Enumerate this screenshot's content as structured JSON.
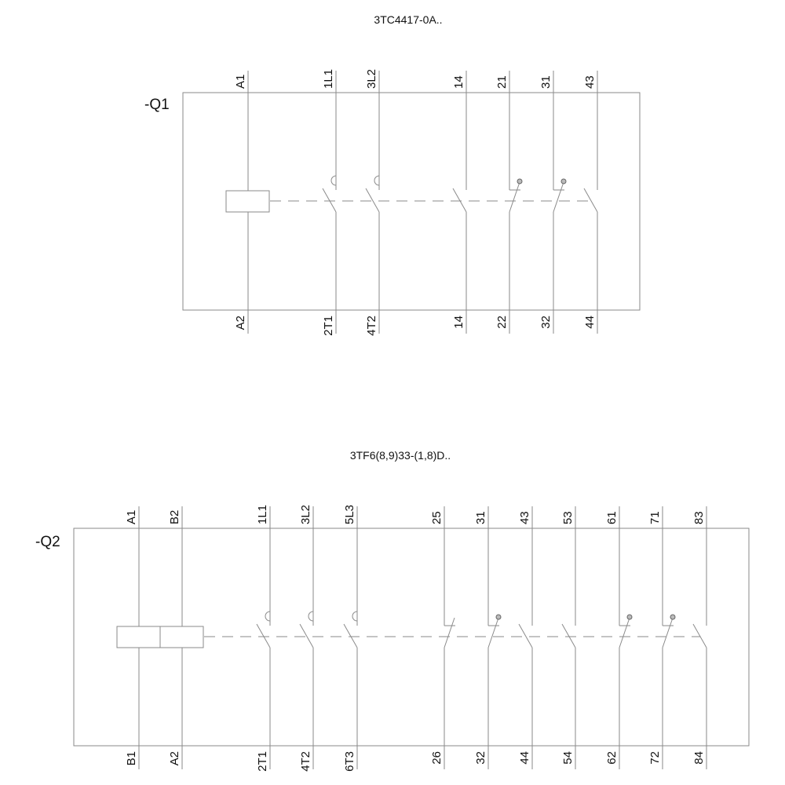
{
  "diagrams": [
    {
      "title": "3TC4417-0A..",
      "tag": "-Q1",
      "coils": [
        {
          "top": "A1",
          "bottom": "A2"
        }
      ],
      "contacts": [
        {
          "top": "1L1",
          "bottom": "2T1",
          "kind": "main-no"
        },
        {
          "top": "3L2",
          "bottom": "4T2",
          "kind": "main-no"
        },
        {
          "top": "14",
          "bottom": "14",
          "kind": "no"
        },
        {
          "top": "21",
          "bottom": "22",
          "kind": "nc-dot"
        },
        {
          "top": "31",
          "bottom": "32",
          "kind": "nc-dot"
        },
        {
          "top": "43",
          "bottom": "44",
          "kind": "no"
        }
      ]
    },
    {
      "title": "3TF6(8,9)33-(1,8)D..",
      "tag": "-Q2",
      "coils": [
        {
          "top": "A1",
          "bottom": "B1"
        },
        {
          "top": "B2",
          "bottom": "A2"
        }
      ],
      "contacts": [
        {
          "top": "1L1",
          "bottom": "2T1",
          "kind": "main-no"
        },
        {
          "top": "3L2",
          "bottom": "4T2",
          "kind": "main-no"
        },
        {
          "top": "5L3",
          "bottom": "6T3",
          "kind": "main-no"
        },
        {
          "top": "25",
          "bottom": "26",
          "kind": "nc"
        },
        {
          "top": "31",
          "bottom": "32",
          "kind": "nc-dot"
        },
        {
          "top": "43",
          "bottom": "44",
          "kind": "no"
        },
        {
          "top": "53",
          "bottom": "54",
          "kind": "no"
        },
        {
          "top": "61",
          "bottom": "62",
          "kind": "nc-dot"
        },
        {
          "top": "71",
          "bottom": "72",
          "kind": "nc-dot"
        },
        {
          "top": "83",
          "bottom": "84",
          "kind": "no"
        }
      ]
    }
  ]
}
